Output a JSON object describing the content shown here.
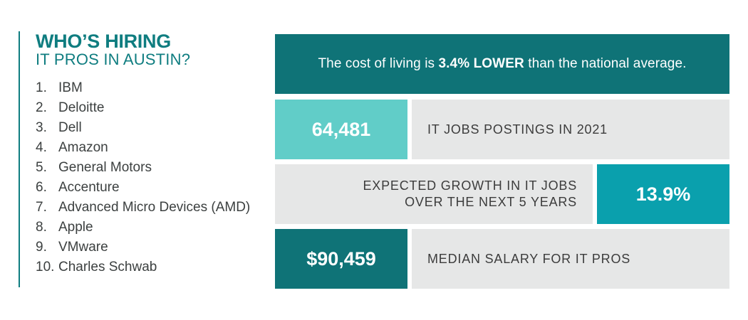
{
  "heading": {
    "title": "WHO’S HIRING",
    "subtitle": "IT PROS IN AUSTIN?"
  },
  "companies": [
    {
      "num": "1.",
      "name": "IBM"
    },
    {
      "num": "2.",
      "name": "Deloitte"
    },
    {
      "num": "3.",
      "name": "Dell"
    },
    {
      "num": "4.",
      "name": "Amazon"
    },
    {
      "num": "5.",
      "name": "General Motors"
    },
    {
      "num": "6.",
      "name": "Accenture"
    },
    {
      "num": "7.",
      "name": "Advanced Micro Devices (AMD)"
    },
    {
      "num": "8.",
      "name": "Apple"
    },
    {
      "num": "9.",
      "name": "VMware"
    },
    {
      "num": "10.",
      "name": "Charles Schwab"
    }
  ],
  "banner": {
    "prefix": "The cost of living is ",
    "highlight": "3.4% LOWER",
    "suffix": " than the national average."
  },
  "stats": {
    "jobs": {
      "value": "64,481",
      "label": "IT JOBS POSTINGS IN 2021"
    },
    "growth": {
      "value": "13.9%",
      "label_line1": "EXPECTED GROWTH IN IT JOBS",
      "label_line2": "OVER THE NEXT 5 YEARS"
    },
    "salary": {
      "value": "$90,459",
      "label": "MEDIAN SALARY FOR IT PROS"
    }
  },
  "colors": {
    "teal_dark": "#0f7377",
    "teal_light": "#61cdc8",
    "teal_mid": "#0aa0ad",
    "grey": "#e6e7e7"
  }
}
